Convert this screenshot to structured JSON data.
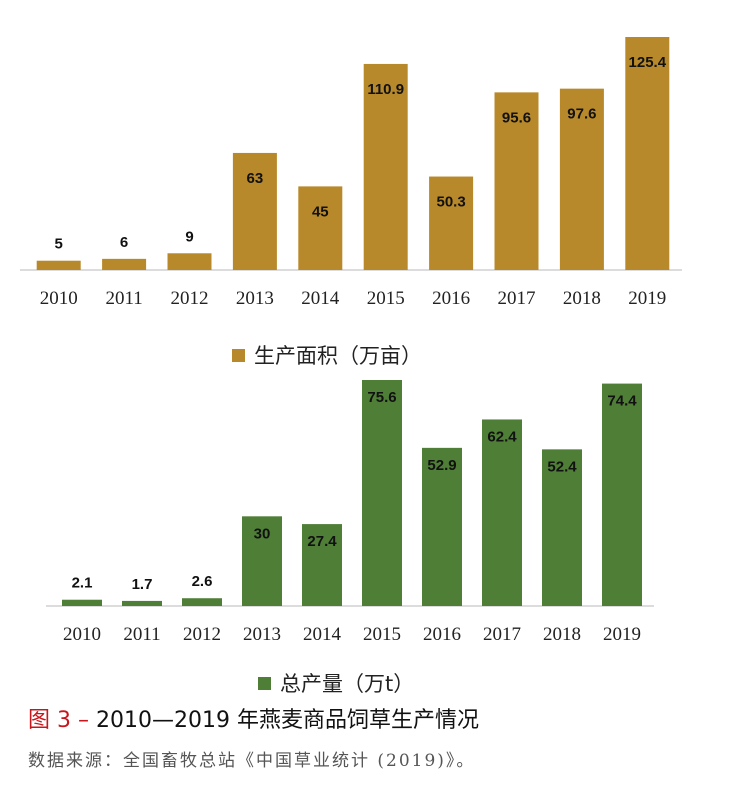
{
  "chart_data": [
    {
      "type": "bar",
      "categories": [
        "2010",
        "2011",
        "2012",
        "2013",
        "2014",
        "2015",
        "2016",
        "2017",
        "2018",
        "2019"
      ],
      "series": [
        {
          "name": "生产面积（万亩）",
          "values": [
            5,
            6,
            9,
            63,
            45,
            110.9,
            50.3,
            95.6,
            97.6,
            125.4
          ],
          "color": "#b8892a"
        }
      ],
      "data_labels": [
        "5",
        "6",
        "9",
        "63",
        "45",
        "110.9",
        "50.3",
        "95.6",
        "97.6",
        "125.4"
      ],
      "ylim": [
        0,
        125.4
      ],
      "grid": false,
      "legend": "bottom"
    },
    {
      "type": "bar",
      "categories": [
        "2010",
        "2011",
        "2012",
        "2013",
        "2014",
        "2015",
        "2016",
        "2017",
        "2018",
        "2019"
      ],
      "series": [
        {
          "name": "总产量（万t）",
          "values": [
            2.1,
            1.7,
            2.6,
            30,
            27.4,
            75.6,
            52.9,
            62.4,
            52.4,
            74.4
          ],
          "color": "#4f7e37"
        }
      ],
      "data_labels": [
        "2.1",
        "1.7",
        "2.6",
        "30",
        "27.4",
        "75.6",
        "52.9",
        "62.4",
        "52.4",
        "74.4"
      ],
      "ylim": [
        0,
        75.6
      ],
      "grid": false,
      "legend": "bottom"
    }
  ],
  "caption": {
    "figure_label": "图 3 –",
    "title": "2010—2019 年燕麦商品饲草生产情况"
  },
  "source": "数据来源：全国畜牧总站《中国草业统计 (2019)》。"
}
